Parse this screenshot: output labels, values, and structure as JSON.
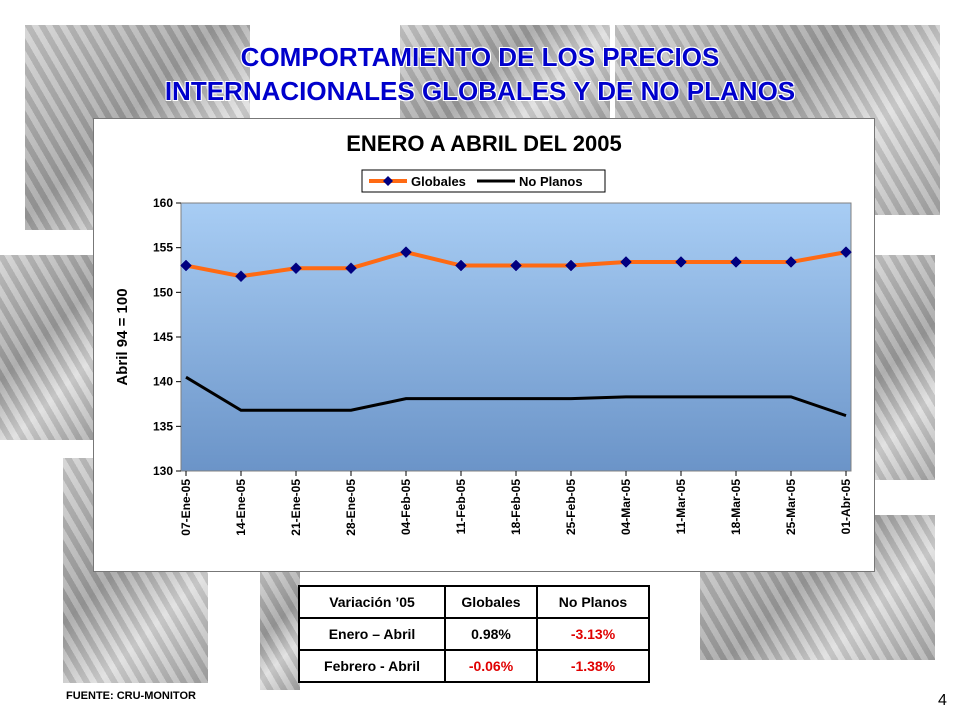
{
  "slide": {
    "title_line1": "COMPORTAMIENTO DE LOS PRECIOS",
    "title_line2": "INTERNACIONALES GLOBALES Y DE NO PLANOS",
    "source": "FUENTE: CRU-MONITOR",
    "page_number": "4"
  },
  "colors": {
    "title": "#0000cc",
    "globales": "#ff6a13",
    "globales_marker": "#000080",
    "no_planos": "#000000",
    "plot_top": "#a8cdf4",
    "plot_bottom": "#6b94c8",
    "negative": "#e00000"
  },
  "chart_data": {
    "type": "line",
    "title": "ENERO A ABRIL DEL 2005",
    "ylabel": "Abril 94 = 100",
    "xlabel": "",
    "ylim": [
      130,
      160
    ],
    "yticks": [
      130,
      135,
      140,
      145,
      150,
      155,
      160
    ],
    "grid": false,
    "legend_position": "top-center",
    "categories": [
      "07-Ene-05",
      "14-Ene-05",
      "21-Ene-05",
      "28-Ene-05",
      "04-Feb-05",
      "11-Feb-05",
      "18-Feb-05",
      "25-Feb-05",
      "04-Mar-05",
      "11-Mar-05",
      "18-Mar-05",
      "25-Mar-05",
      "01-Abr-05"
    ],
    "series": [
      {
        "name": "Globales",
        "values": [
          153.0,
          151.8,
          152.7,
          152.7,
          154.5,
          153.0,
          153.0,
          153.0,
          153.4,
          153.4,
          153.4,
          153.4,
          154.5
        ]
      },
      {
        "name": "No Planos",
        "values": [
          140.5,
          136.8,
          136.8,
          136.8,
          138.1,
          138.1,
          138.1,
          138.1,
          138.3,
          138.3,
          138.3,
          138.3,
          136.2
        ]
      }
    ]
  },
  "table": {
    "headers": [
      "Variación ’05",
      "Globales",
      "No Planos"
    ],
    "rows": [
      {
        "label": "Enero – Abril",
        "globales": "0.98%",
        "no_planos": "-3.13%"
      },
      {
        "label": "Febrero - Abril",
        "globales": "-0.06%",
        "no_planos": "-1.38%"
      }
    ]
  }
}
